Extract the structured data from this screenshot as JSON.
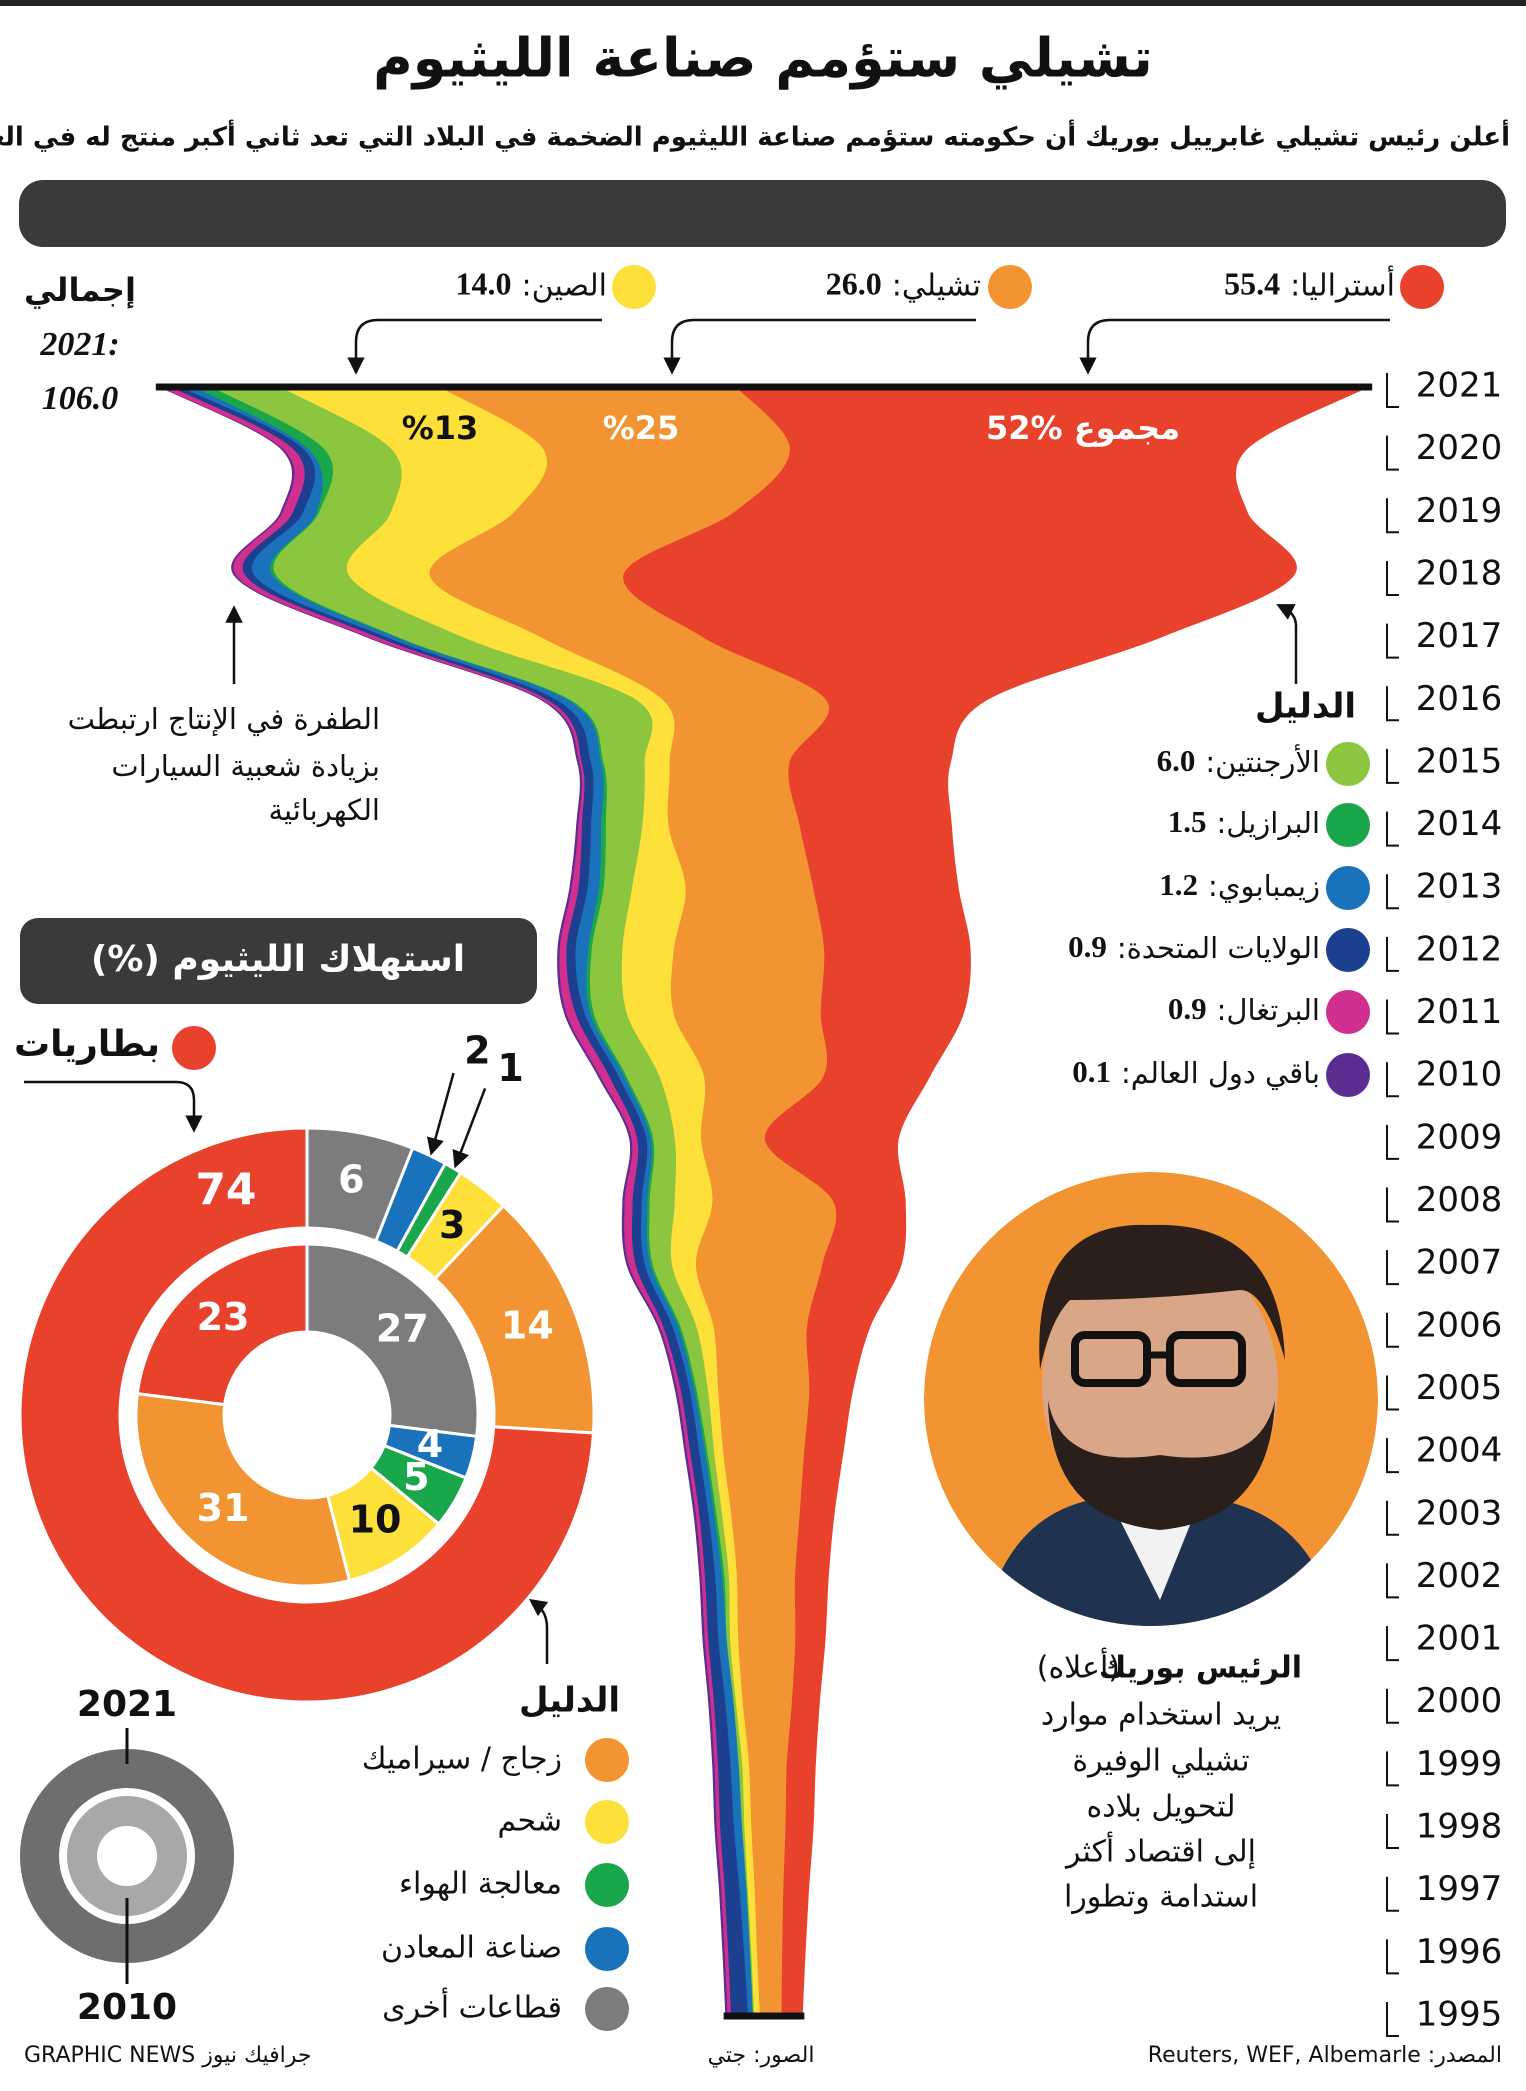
{
  "header": {
    "title": "تشيلي ستؤمم صناعة الليثيوم",
    "subtitle": "أعلن رئيس تشيلي غابرييل بوريك أن حكومته ستؤمم صناعة الليثيوم الضخمة في البلاد التي تعد ثاني أكبر منتج له في العالم"
  },
  "chart_data": [
    {
      "type": "stream",
      "x": [
        1995,
        1996,
        1997,
        1998,
        1999,
        2000,
        2001,
        2002,
        2003,
        2004,
        2005,
        2006,
        2007,
        2008,
        2009,
        2010,
        2011,
        2012,
        2013,
        2014,
        2015,
        2016,
        2017,
        2018,
        2019,
        2020,
        2021
      ],
      "total_title": "إجمالي",
      "total_year": "2021:",
      "total": {
        "value": 106,
        "label": "106.0"
      },
      "share_labels": [
        "%13",
        "%25",
        "مجموع %52"
      ],
      "legend_title": "الدليل",
      "annotation": [
        "الطفرة في الإنتاج ارتبطت",
        "بزيادة شعبية السيارات",
        "الكهربائية"
      ],
      "series": [
        {
          "name": "أستراليا:",
          "color": "#e8412c",
          "values": [
            1.8,
            2.0,
            2.2,
            2.4,
            2.5,
            2.4,
            2.6,
            2.9,
            3.0,
            3.4,
            3.8,
            5.5,
            6.9,
            6.3,
            11.7,
            9.3,
            12.5,
            12.8,
            12.7,
            13.3,
            14.1,
            14.0,
            40.0,
            58.8,
            45.0,
            40.0,
            55.4
          ]
        },
        {
          "name": "تشيلي:",
          "color": "#f39433",
          "values": [
            1.9,
            2.2,
            2.5,
            3.0,
            3.3,
            4.3,
            5.0,
            5.1,
            6.0,
            7.1,
            8.0,
            8.2,
            11.1,
            10.6,
            5.6,
            10.5,
            12.9,
            13.2,
            11.2,
            11.5,
            10.5,
            14.3,
            14.2,
            17.0,
            19.3,
            21.6,
            26.0
          ],
          "value_labels": [
            null,
            null,
            null,
            null,
            null,
            null,
            null,
            null,
            null,
            null,
            null,
            null,
            null,
            null,
            null,
            null,
            null,
            null,
            null,
            null,
            null,
            null,
            null,
            null,
            null,
            null,
            "26.0"
          ]
        },
        {
          "name": "الصين:",
          "color": "#fde13a",
          "values": [
            0.5,
            0.5,
            0.6,
            0.6,
            0.6,
            0.6,
            0.7,
            0.7,
            0.8,
            0.8,
            0.9,
            1.5,
            2.1,
            3.3,
            2.3,
            3.9,
            4.1,
            4.5,
            4.7,
            2.3,
            2.2,
            2.3,
            6.8,
            7.1,
            10.8,
            13.3,
            14.0
          ],
          "value_labels": [
            null,
            null,
            null,
            null,
            null,
            null,
            null,
            null,
            null,
            null,
            null,
            null,
            null,
            null,
            null,
            null,
            null,
            null,
            null,
            null,
            null,
            null,
            null,
            null,
            null,
            null,
            "14.0"
          ]
        },
        {
          "name": "الأرجنتين:",
          "color": "#8cc63f",
          "values": [
            0.1,
            0.1,
            0.1,
            0.2,
            0.3,
            0.2,
            0.3,
            0.4,
            0.5,
            0.6,
            1.0,
            1.4,
            1.7,
            2.2,
            1.9,
            2.9,
            2.9,
            2.7,
            2.5,
            3.2,
            3.6,
            5.8,
            5.7,
            6.4,
            6.3,
            5.9,
            6.0
          ],
          "value_labels": [
            null,
            null,
            null,
            null,
            null,
            null,
            null,
            null,
            null,
            null,
            null,
            null,
            null,
            null,
            null,
            null,
            null,
            null,
            null,
            null,
            null,
            null,
            null,
            null,
            null,
            null,
            "6.0"
          ]
        },
        {
          "name": "البرازيل:",
          "color": "#1aa64a",
          "values": [
            0.03,
            0.03,
            0.03,
            0.03,
            0.03,
            0.03,
            0.03,
            0.2,
            0.2,
            0.2,
            0.2,
            0.2,
            0.2,
            0.2,
            0.2,
            0.2,
            0.3,
            0.3,
            0.4,
            0.4,
            0.2,
            0.2,
            0.2,
            0.3,
            0.2,
            1.4,
            1.5
          ]
        },
        {
          "name": "زيمبابوي:",
          "color": "#1a72bb",
          "values": [
            0.4,
            0.5,
            0.6,
            0.7,
            0.7,
            0.7,
            0.7,
            0.6,
            0.5,
            0.5,
            0.4,
            0.5,
            0.5,
            0.5,
            0.4,
            0.5,
            0.5,
            1.1,
            1.0,
            0.9,
            0.9,
            1.0,
            0.8,
            1.6,
            1.2,
            0.4,
            1.2
          ]
        },
        {
          "name": "الولايات المتحدة:",
          "color": "#1d3f8f",
          "values": [
            1.5,
            1.4,
            1.3,
            1.2,
            1.1,
            1.0,
            0.9,
            0.9,
            0.8,
            0.8,
            0.8,
            0.8,
            0.8,
            0.8,
            0.8,
            0.8,
            0.8,
            0.8,
            0.8,
            0.8,
            0.8,
            0.8,
            0.8,
            0.8,
            0.9,
            0.9,
            0.9
          ]
        },
        {
          "name": "البرتغال:",
          "color": "#d12f8f",
          "values": [
            0.3,
            0.3,
            0.3,
            0.3,
            0.3,
            0.3,
            0.3,
            0.3,
            0.3,
            0.3,
            0.3,
            0.3,
            0.6,
            0.7,
            0.5,
            0.8,
            0.8,
            0.6,
            0.6,
            0.3,
            0.2,
            0.4,
            0.8,
            0.8,
            0.9,
            0.9,
            0.9
          ]
        },
        {
          "name": "باقي دول العالم:",
          "color": "#5c2d91",
          "values": [
            0.2,
            0.2,
            0.2,
            0.2,
            0.2,
            0.2,
            0.2,
            0.2,
            0.2,
            0.2,
            0.2,
            0.2,
            0.2,
            0.2,
            0.2,
            0.2,
            0.2,
            0.2,
            0.2,
            0.2,
            0.2,
            0.2,
            0.2,
            0.2,
            0.2,
            0.2,
            0.1
          ]
        }
      ]
    },
    {
      "type": "donut",
      "title": "استهلاك الليثيوم (%)",
      "legend_title": "الدليل",
      "categories": [
        "بطاريات",
        "زجاج / سيراميك",
        "شحم",
        "معالجة الهواء",
        "صناعة المعادن",
        "قطاعات أخرى"
      ],
      "colors": [
        "#e8412c",
        "#f39433",
        "#fde13a",
        "#1aa64a",
        "#1a72bb",
        "#7c7c7e"
      ],
      "series": [
        {
          "name": "2021",
          "values": [
            74,
            14,
            3,
            1,
            2,
            6
          ]
        },
        {
          "name": "2010",
          "values": [
            23,
            31,
            10,
            5,
            4,
            27
          ]
        }
      ]
    }
  ],
  "photo": {
    "caption_name": "الرئيس بوريك",
    "caption_note": "(أعلاه)",
    "caption_lines": [
      "يريد استخدام موارد",
      "تشيلي الوفيرة",
      "لتحويل بلاده",
      "إلى اقتصاد أكثر",
      "استدامة وتطورا"
    ]
  },
  "footer": {
    "source": "المصدر: Reuters, WEF, Albemarle",
    "photos": "الصور: جتي",
    "credit": "GRAPHIC NEWS جرافيك نيوز"
  }
}
